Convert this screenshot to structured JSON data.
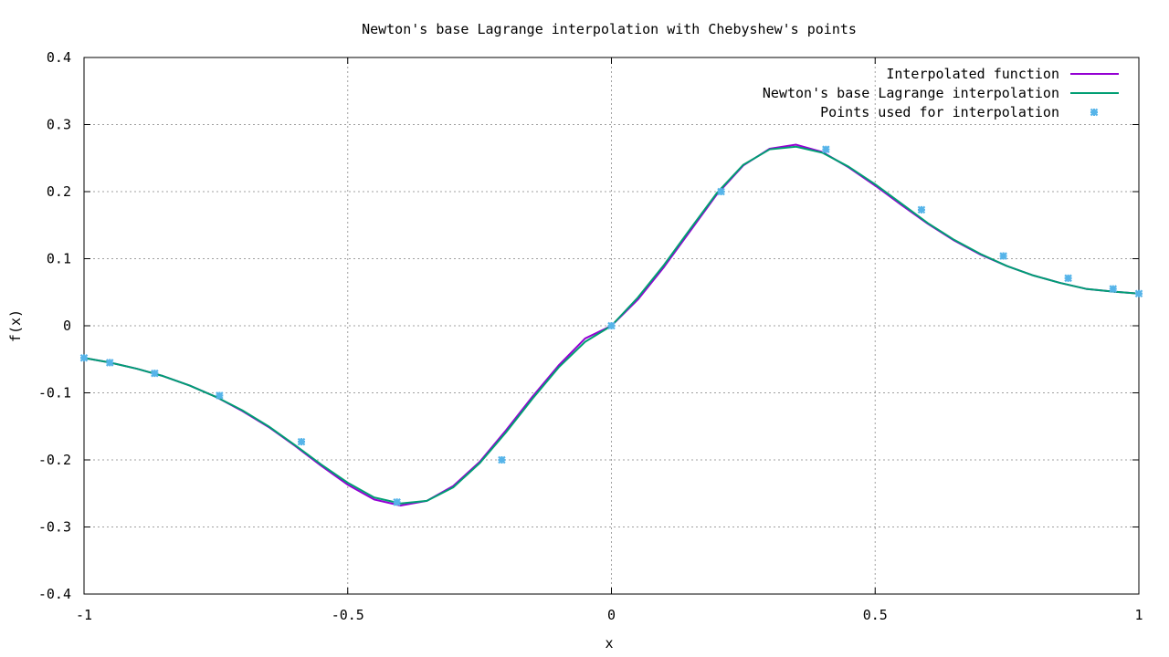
{
  "chart_data": {
    "type": "line",
    "title": "Newton's base Lagrange interpolation with Chebyshew's points",
    "xlabel": "x",
    "ylabel": "f(x)",
    "xlim": [
      -1,
      1
    ],
    "ylim": [
      -0.4,
      0.4
    ],
    "xticks": [
      -1,
      -0.5,
      0,
      0.5,
      1
    ],
    "xtick_labels": [
      "-1",
      "-0.5",
      "0",
      "0.5",
      "1"
    ],
    "yticks": [
      -0.4,
      -0.3,
      -0.2,
      -0.1,
      0,
      0.1,
      0.2,
      0.3,
      0.4
    ],
    "ytick_labels": [
      "-0.4",
      "-0.3",
      "-0.2",
      "-0.1",
      "0",
      "0.1",
      "0.2",
      "0.3",
      "0.4"
    ],
    "grid": true,
    "legend_position": "top-right",
    "series": [
      {
        "name": "Interpolated function",
        "kind": "line",
        "color": "#9400d3",
        "x": [
          -1.0,
          -0.95,
          -0.9,
          -0.85,
          -0.8,
          -0.75,
          -0.7,
          -0.65,
          -0.6,
          -0.55,
          -0.5,
          -0.45,
          -0.4,
          -0.35,
          -0.3,
          -0.25,
          -0.2,
          -0.15,
          -0.1,
          -0.05,
          0.0,
          0.05,
          0.1,
          0.15,
          0.2,
          0.25,
          0.3,
          0.35,
          0.4,
          0.45,
          0.5,
          0.55,
          0.6,
          0.65,
          0.7,
          0.75,
          0.8,
          0.85,
          0.9,
          0.95,
          1.0
        ],
        "y": [
          -0.048,
          -0.055,
          -0.064,
          -0.075,
          -0.089,
          -0.106,
          -0.127,
          -0.151,
          -0.179,
          -0.209,
          -0.237,
          -0.259,
          -0.268,
          -0.261,
          -0.239,
          -0.203,
          -0.156,
          -0.106,
          -0.059,
          -0.019,
          0.0,
          0.039,
          0.088,
          0.142,
          0.196,
          0.239,
          0.264,
          0.27,
          0.259,
          0.236,
          0.209,
          0.18,
          0.152,
          0.127,
          0.106,
          0.089,
          0.075,
          0.064,
          0.055,
          0.051,
          0.048
        ]
      },
      {
        "name": "Newton's base Lagrange interpolation",
        "kind": "line",
        "color": "#009e73",
        "x": [
          -1.0,
          -0.95,
          -0.9,
          -0.85,
          -0.8,
          -0.75,
          -0.7,
          -0.65,
          -0.6,
          -0.55,
          -0.5,
          -0.45,
          -0.4,
          -0.35,
          -0.3,
          -0.25,
          -0.2,
          -0.15,
          -0.1,
          -0.05,
          0.0,
          0.05,
          0.1,
          0.15,
          0.2,
          0.25,
          0.3,
          0.35,
          0.4,
          0.45,
          0.5,
          0.55,
          0.6,
          0.65,
          0.7,
          0.75,
          0.8,
          0.85,
          0.9,
          0.95,
          1.0
        ],
        "y": [
          -0.048,
          -0.055,
          -0.064,
          -0.075,
          -0.089,
          -0.106,
          -0.126,
          -0.15,
          -0.178,
          -0.207,
          -0.234,
          -0.256,
          -0.265,
          -0.261,
          -0.241,
          -0.205,
          -0.159,
          -0.109,
          -0.062,
          -0.024,
          0.0,
          0.042,
          0.091,
          0.145,
          0.198,
          0.24,
          0.263,
          0.267,
          0.258,
          0.237,
          0.211,
          0.182,
          0.153,
          0.128,
          0.107,
          0.089,
          0.075,
          0.064,
          0.055,
          0.051,
          0.048
        ]
      },
      {
        "name": "Points used for interpolation",
        "kind": "points",
        "color": "#56b4e9",
        "x": [
          -1.0,
          -0.9511,
          -0.866,
          -0.7431,
          -0.5878,
          -0.4067,
          -0.2079,
          0.0,
          0.2079,
          0.4067,
          0.5878,
          0.7431,
          0.866,
          0.9511,
          1.0
        ],
        "y": [
          -0.048,
          -0.055,
          -0.071,
          -0.104,
          -0.173,
          -0.263,
          -0.2,
          0.0,
          0.2,
          0.263,
          0.173,
          0.104,
          0.071,
          0.055,
          0.048
        ]
      }
    ]
  }
}
